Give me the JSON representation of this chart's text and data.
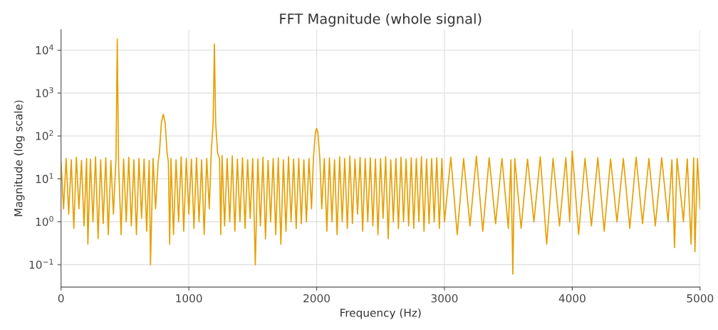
{
  "chart_data": {
    "type": "line",
    "title": "FFT Magnitude (whole signal)",
    "xlabel": "Frequency (Hz)",
    "ylabel": "Magnitude (log scale)",
    "x": [
      0,
      20,
      40,
      60,
      80,
      100,
      120,
      140,
      160,
      180,
      200,
      210,
      230,
      250,
      270,
      290,
      310,
      330,
      350,
      370,
      390,
      410,
      430,
      440,
      450,
      470,
      490,
      510,
      530,
      550,
      570,
      590,
      610,
      630,
      650,
      670,
      690,
      700,
      720,
      740,
      760,
      770,
      785,
      800,
      815,
      830,
      840,
      850,
      860,
      880,
      900,
      920,
      940,
      960,
      980,
      1000,
      1020,
      1040,
      1060,
      1080,
      1100,
      1120,
      1140,
      1160,
      1175,
      1190,
      1200,
      1210,
      1225,
      1240,
      1250,
      1260,
      1280,
      1300,
      1320,
      1340,
      1360,
      1380,
      1400,
      1420,
      1440,
      1460,
      1480,
      1500,
      1520,
      1540,
      1560,
      1580,
      1600,
      1620,
      1640,
      1660,
      1680,
      1700,
      1720,
      1740,
      1760,
      1780,
      1800,
      1820,
      1840,
      1860,
      1880,
      1900,
      1920,
      1940,
      1960,
      1975,
      1990,
      2000,
      2010,
      2025,
      2040,
      2060,
      2080,
      2100,
      2120,
      2140,
      2160,
      2180,
      2200,
      2220,
      2240,
      2260,
      2280,
      2300,
      2320,
      2340,
      2360,
      2380,
      2400,
      2420,
      2440,
      2460,
      2480,
      2500,
      2520,
      2540,
      2560,
      2580,
      2600,
      2620,
      2640,
      2660,
      2680,
      2700,
      2720,
      2740,
      2760,
      2780,
      2800,
      2820,
      2840,
      2860,
      2880,
      2900,
      2920,
      2940,
      2960,
      2980,
      3000,
      3050,
      3100,
      3150,
      3200,
      3250,
      3300,
      3350,
      3400,
      3450,
      3500,
      3520,
      3535,
      3550,
      3600,
      3650,
      3700,
      3750,
      3800,
      3850,
      3900,
      3950,
      3980,
      4000,
      4050,
      4100,
      4150,
      4200,
      4250,
      4300,
      4350,
      4400,
      4450,
      4500,
      4550,
      4600,
      4650,
      4700,
      4750,
      4780,
      4800,
      4820,
      4870,
      4900,
      4930,
      4950,
      4960,
      4980,
      5000
    ],
    "values": [
      25,
      2,
      30,
      1.5,
      28,
      0.7,
      32,
      2,
      27,
      0.8,
      30,
      0.3,
      29,
      1,
      33,
      0.4,
      28,
      0.9,
      31,
      0.5,
      27,
      1.5,
      30,
      18000,
      25,
      0.5,
      29,
      1,
      32,
      0.8,
      28,
      0.5,
      30,
      1.2,
      29,
      0.6,
      27,
      0.1,
      30,
      2,
      25,
      40,
      200,
      320,
      200,
      40,
      25,
      0.3,
      30,
      0.5,
      28,
      1,
      33,
      0.6,
      30,
      1.5,
      29,
      0.7,
      31,
      1,
      28,
      0.5,
      30,
      2,
      40,
      200,
      14000,
      200,
      40,
      30,
      0.5,
      35,
      0.8,
      30,
      1,
      34,
      0.6,
      29,
      1,
      31,
      0.7,
      28,
      1.2,
      30,
      0.1,
      29,
      0.8,
      32,
      0.4,
      27,
      1,
      30,
      0.5,
      31,
      0.3,
      28,
      0.6,
      33,
      1,
      29,
      0.7,
      30,
      0.9,
      28,
      1,
      30,
      2,
      30,
      120,
      150,
      120,
      30,
      2,
      30,
      0.6,
      31,
      1,
      28,
      0.5,
      33,
      1,
      30,
      0.7,
      34,
      0.9,
      29,
      1.5,
      32,
      0.6,
      30,
      1,
      31,
      0.8,
      29,
      0.5,
      30,
      1.2,
      33,
      0.4,
      28,
      1,
      30,
      0.7,
      32,
      1,
      29,
      0.8,
      31,
      0.7,
      30,
      1,
      33,
      0.6,
      29,
      0.9,
      30,
      1,
      31,
      0.7,
      30,
      1,
      32,
      0.5,
      30,
      0.8,
      34,
      0.6,
      31,
      0.9,
      30,
      0.7,
      28,
      0.06,
      30,
      0.7,
      29,
      1,
      33,
      0.3,
      30,
      0.8,
      31,
      1,
      45,
      0.5,
      30,
      0.8,
      31,
      0.6,
      29,
      1,
      30,
      0.7,
      32,
      0.9,
      30,
      0.8,
      31,
      1,
      28,
      0.25,
      30,
      1,
      29,
      0.3,
      31,
      0.2,
      30,
      2
    ],
    "color": "#e69f00",
    "log": "y",
    "grid": true,
    "xlim": [
      0,
      5000
    ],
    "xticks": [
      0,
      1000,
      2000,
      3000,
      4000,
      5000
    ],
    "ylim": [
      0.03,
      30000
    ],
    "yticks": [
      {
        "value": 0.1,
        "label": "10$^{−1}$"
      },
      {
        "value": 1,
        "label": "10$^{0}$"
      },
      {
        "value": 10,
        "label": "10$^{1}$"
      },
      {
        "value": 100,
        "label": "10$^{2}$"
      },
      {
        "value": 1000,
        "label": "10$^{3}$"
      },
      {
        "value": 10000,
        "label": "10$^{4}$"
      }
    ]
  }
}
